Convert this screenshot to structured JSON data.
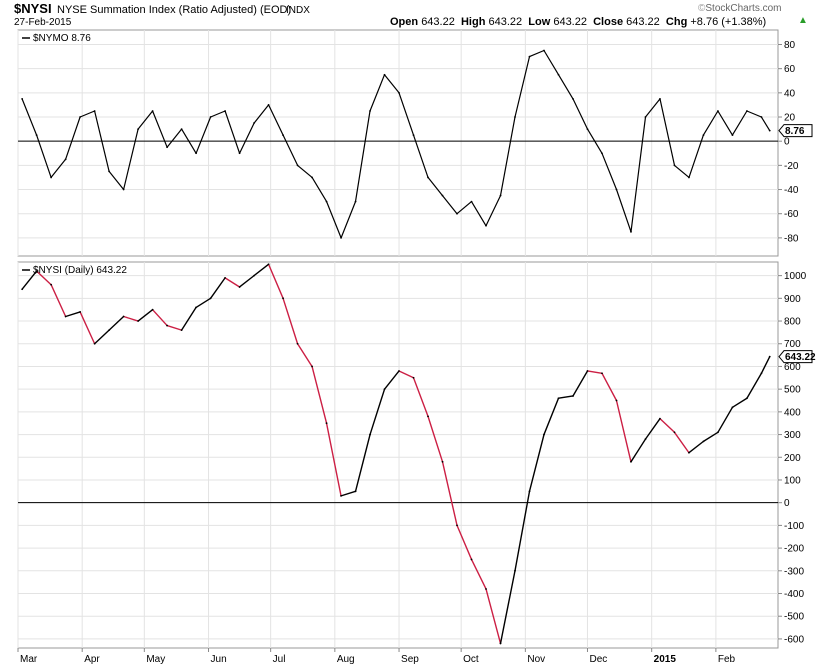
{
  "header": {
    "ticker": "$NYSI",
    "description": "NYSE Summation Index (Ratio Adjusted) (EOD)",
    "exchange": "INDX",
    "date": "27-Feb-2015",
    "open_label": "Open",
    "open": "643.22",
    "high_label": "High",
    "high": "643.22",
    "low_label": "Low",
    "low": "643.22",
    "close_label": "Close",
    "close": "643.22",
    "chg_label": "Chg",
    "chg": "+8.76 (+1.38%)",
    "watermark": "StockCharts.com",
    "up_color": "#2a9d2a"
  },
  "chart_data": [
    {
      "type": "line",
      "panel": "$NYMO",
      "label": "$NYMO 8.76",
      "last_value": "8.76",
      "ylim": [
        -95,
        92
      ],
      "yticks": [
        80,
        60,
        40,
        20,
        0,
        -20,
        -40,
        -60,
        -80
      ],
      "zero_line": true,
      "color": "#000000",
      "x": [
        "2014-03-03",
        "2014-03-10",
        "2014-03-17",
        "2014-03-24",
        "2014-03-31",
        "2014-04-07",
        "2014-04-14",
        "2014-04-21",
        "2014-04-28",
        "2014-05-05",
        "2014-05-12",
        "2014-05-19",
        "2014-05-26",
        "2014-06-02",
        "2014-06-09",
        "2014-06-16",
        "2014-06-23",
        "2014-06-30",
        "2014-07-07",
        "2014-07-14",
        "2014-07-21",
        "2014-07-28",
        "2014-08-04",
        "2014-08-11",
        "2014-08-18",
        "2014-08-25",
        "2014-09-01",
        "2014-09-08",
        "2014-09-15",
        "2014-09-22",
        "2014-09-29",
        "2014-10-06",
        "2014-10-13",
        "2014-10-20",
        "2014-10-27",
        "2014-11-03",
        "2014-11-10",
        "2014-11-17",
        "2014-11-24",
        "2014-12-01",
        "2014-12-08",
        "2014-12-15",
        "2014-12-22",
        "2014-12-29",
        "2015-01-05",
        "2015-01-12",
        "2015-01-19",
        "2015-01-26",
        "2015-02-02",
        "2015-02-09",
        "2015-02-16",
        "2015-02-23",
        "2015-02-27"
      ],
      "values": [
        35,
        5,
        -30,
        -15,
        20,
        25,
        -25,
        -40,
        10,
        25,
        -5,
        10,
        -10,
        20,
        25,
        -10,
        15,
        30,
        5,
        -20,
        -30,
        -50,
        -80,
        -50,
        25,
        55,
        40,
        5,
        -30,
        -45,
        -60,
        -50,
        -70,
        -45,
        20,
        70,
        75,
        55,
        35,
        10,
        -10,
        -40,
        -75,
        20,
        35,
        -20,
        -30,
        5,
        25,
        5,
        25,
        20,
        8.76
      ]
    },
    {
      "type": "line",
      "panel": "$NYSI",
      "label": "$NYSI (Daily) 643.22",
      "last_value": "643.22",
      "ylim": [
        -640,
        1060
      ],
      "yticks": [
        1000,
        900,
        800,
        700,
        600,
        500,
        400,
        300,
        200,
        100,
        0,
        -100,
        -200,
        -300,
        -400,
        -500,
        -600
      ],
      "zero_line": true,
      "up_color": "#000000",
      "down_color": "#cc1f44",
      "x": [
        "2014-03-03",
        "2014-03-10",
        "2014-03-17",
        "2014-03-24",
        "2014-03-31",
        "2014-04-07",
        "2014-04-14",
        "2014-04-21",
        "2014-04-28",
        "2014-05-05",
        "2014-05-12",
        "2014-05-19",
        "2014-05-26",
        "2014-06-02",
        "2014-06-09",
        "2014-06-16",
        "2014-06-23",
        "2014-06-30",
        "2014-07-07",
        "2014-07-14",
        "2014-07-21",
        "2014-07-28",
        "2014-08-04",
        "2014-08-11",
        "2014-08-18",
        "2014-08-25",
        "2014-09-01",
        "2014-09-08",
        "2014-09-15",
        "2014-09-22",
        "2014-09-29",
        "2014-10-06",
        "2014-10-13",
        "2014-10-20",
        "2014-10-27",
        "2014-11-03",
        "2014-11-10",
        "2014-11-17",
        "2014-11-24",
        "2014-12-01",
        "2014-12-08",
        "2014-12-15",
        "2014-12-22",
        "2014-12-29",
        "2015-01-05",
        "2015-01-12",
        "2015-01-19",
        "2015-01-26",
        "2015-02-02",
        "2015-02-09",
        "2015-02-16",
        "2015-02-23",
        "2015-02-27"
      ],
      "values": [
        940,
        1020,
        960,
        820,
        840,
        700,
        760,
        820,
        800,
        850,
        780,
        760,
        860,
        900,
        990,
        950,
        1000,
        1050,
        900,
        700,
        600,
        350,
        30,
        50,
        300,
        500,
        580,
        550,
        380,
        180,
        -100,
        -250,
        -380,
        -620,
        -300,
        50,
        300,
        460,
        470,
        580,
        570,
        450,
        180,
        280,
        370,
        310,
        220,
        270,
        310,
        420,
        460,
        570,
        643.22
      ]
    }
  ],
  "x_axis": {
    "labels": [
      {
        "label": "Mar",
        "date": "2014-03-01",
        "bold": false
      },
      {
        "label": "Apr",
        "date": "2014-04-01",
        "bold": false
      },
      {
        "label": "May",
        "date": "2014-05-01",
        "bold": false
      },
      {
        "label": "Jun",
        "date": "2014-06-01",
        "bold": false
      },
      {
        "label": "Jul",
        "date": "2014-07-01",
        "bold": false
      },
      {
        "label": "Aug",
        "date": "2014-08-01",
        "bold": false
      },
      {
        "label": "Sep",
        "date": "2014-09-01",
        "bold": false
      },
      {
        "label": "Oct",
        "date": "2014-10-01",
        "bold": false
      },
      {
        "label": "Nov",
        "date": "2014-11-01",
        "bold": false
      },
      {
        "label": "Dec",
        "date": "2014-12-01",
        "bold": false
      },
      {
        "label": "2015",
        "date": "2015-01-01",
        "bold": true
      },
      {
        "label": "Feb",
        "date": "2015-02-01",
        "bold": false
      }
    ],
    "start": "2014-03-01",
    "end": "2015-03-03"
  }
}
